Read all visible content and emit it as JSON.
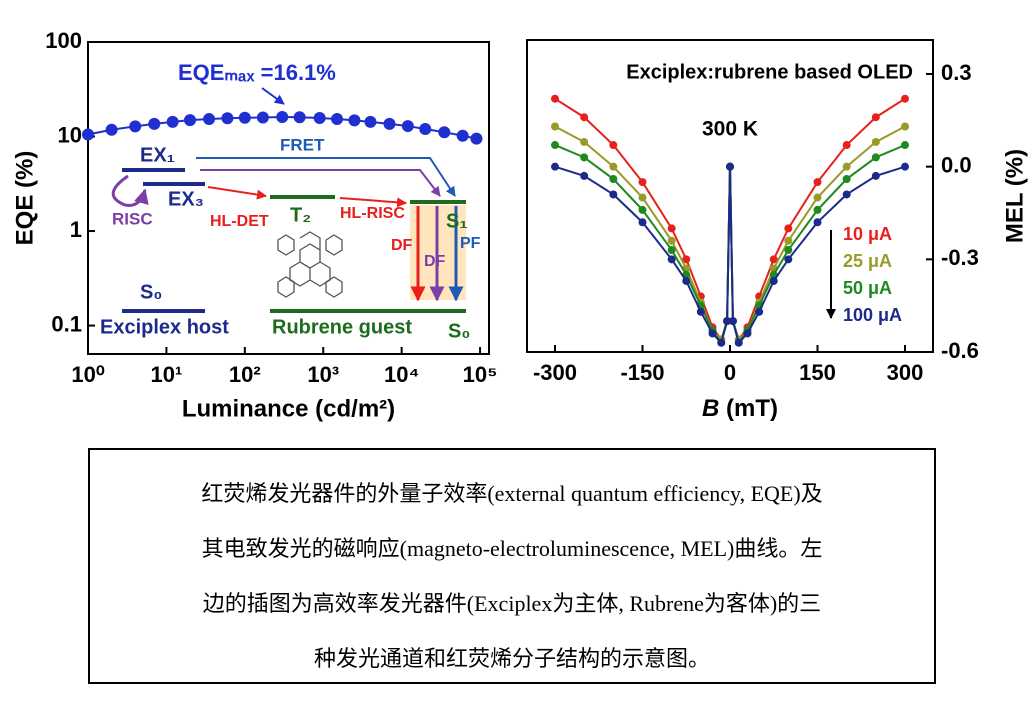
{
  "chart_data": [
    {
      "type": "line",
      "xscale": "log",
      "yscale": "log",
      "xlabel": "Luminance (cd/m²)",
      "ylabel": "EQE (%)",
      "xlim": [
        1,
        130000
      ],
      "ylim": [
        0.05,
        100
      ],
      "xticks": [
        {
          "value": 1,
          "label": "10⁰"
        },
        {
          "value": 10,
          "label": "10¹"
        },
        {
          "value": 100,
          "label": "10²"
        },
        {
          "value": 1000,
          "label": "10³"
        },
        {
          "value": 10000,
          "label": "10⁴"
        },
        {
          "value": 100000,
          "label": "10⁵"
        }
      ],
      "yticks": [
        0.1,
        1,
        10,
        100
      ],
      "x": [
        1,
        2,
        4,
        7,
        12,
        20,
        35,
        60,
        100,
        170,
        300,
        500,
        900,
        1500,
        2500,
        4000,
        7000,
        12000,
        20000,
        35000,
        60000,
        90000
      ],
      "series": [
        {
          "color": "#1f2fd0",
          "values": [
            10.5,
            11.8,
            12.8,
            13.6,
            14.3,
            14.9,
            15.3,
            15.6,
            15.8,
            15.9,
            16.1,
            16.0,
            15.7,
            15.3,
            14.8,
            14.3,
            13.6,
            12.9,
            12.0,
            11.1,
            10.2,
            9.5
          ]
        }
      ],
      "annotation": "EQEₘₐₓ =16.1%",
      "inset": {
        "ex1": "EX₁",
        "ex3": "EX₃",
        "risc": "RISC",
        "fret": "FRET",
        "hl_det": "HL-DET",
        "t2": "T₂",
        "hl_risc": "HL-RISC",
        "s1": "S₁",
        "df_red": "DF",
        "df_purple": "DF",
        "pf": "PF",
        "s0_host": "S₀",
        "host": "Exciplex host",
        "guest": "Rubrene guest",
        "s0_guest": "S₀"
      }
    },
    {
      "type": "line",
      "title": "Exciplex:rubrene based OLED",
      "annotation": "300 K",
      "xlabel_var": "B",
      "xlabel_unit": "(mT)",
      "ylabel": "MEL (%)",
      "y_axis_side": "right",
      "legend": "center-right",
      "xlim": [
        -348,
        348
      ],
      "ylim": [
        -0.6,
        0.41
      ],
      "xticks": [
        -300,
        -150,
        0,
        150,
        300
      ],
      "yticks": [
        0.3,
        {
          "value": 0,
          "label": "0.0"
        },
        -0.3,
        -0.6
      ],
      "x": [
        -300,
        -250,
        -200,
        -150,
        -100,
        -75,
        -50,
        -30,
        -15,
        -5,
        0,
        5,
        15,
        30,
        50,
        75,
        100,
        150,
        200,
        250,
        300
      ],
      "series": [
        {
          "name": "10 μA",
          "color": "#e8201c",
          "values": [
            0.22,
            0.16,
            0.07,
            -0.05,
            -0.2,
            -0.3,
            -0.42,
            -0.52,
            -0.56,
            -0.5,
            0.0,
            -0.5,
            -0.56,
            -0.52,
            -0.42,
            -0.3,
            -0.2,
            -0.05,
            0.07,
            0.16,
            0.22
          ]
        },
        {
          "name": "25 μA",
          "color": "#9a9a28",
          "values": [
            0.13,
            0.08,
            0.0,
            -0.1,
            -0.24,
            -0.33,
            -0.44,
            -0.53,
            -0.56,
            -0.5,
            0.0,
            -0.5,
            -0.56,
            -0.53,
            -0.44,
            -0.33,
            -0.24,
            -0.1,
            0.0,
            0.08,
            0.13
          ]
        },
        {
          "name": "50 μA",
          "color": "#1e8a1e",
          "values": [
            0.07,
            0.03,
            -0.04,
            -0.14,
            -0.27,
            -0.35,
            -0.45,
            -0.53,
            -0.57,
            -0.5,
            0.0,
            -0.5,
            -0.57,
            -0.53,
            -0.45,
            -0.35,
            -0.27,
            -0.14,
            -0.04,
            0.03,
            0.07
          ]
        },
        {
          "name": "100 μA",
          "color": "#1c2a8c",
          "values": [
            0.0,
            -0.03,
            -0.09,
            -0.18,
            -0.3,
            -0.37,
            -0.47,
            -0.54,
            -0.57,
            -0.5,
            0.0,
            -0.5,
            -0.57,
            -0.54,
            -0.47,
            -0.37,
            -0.3,
            -0.18,
            -0.09,
            -0.03,
            0.0
          ]
        }
      ]
    }
  ],
  "caption": {
    "lines": [
      "红荧烯发光器件的外量子效率(external quantum efficiency, EQE)及",
      "其电致发光的磁响应(magneto-electroluminescence, MEL)曲线。左",
      "边的插图为高效率发光器件(Exciplex为主体, Rubrene为客体)的三",
      "种发光通道和红荧烯分子结构的示意图。"
    ]
  }
}
